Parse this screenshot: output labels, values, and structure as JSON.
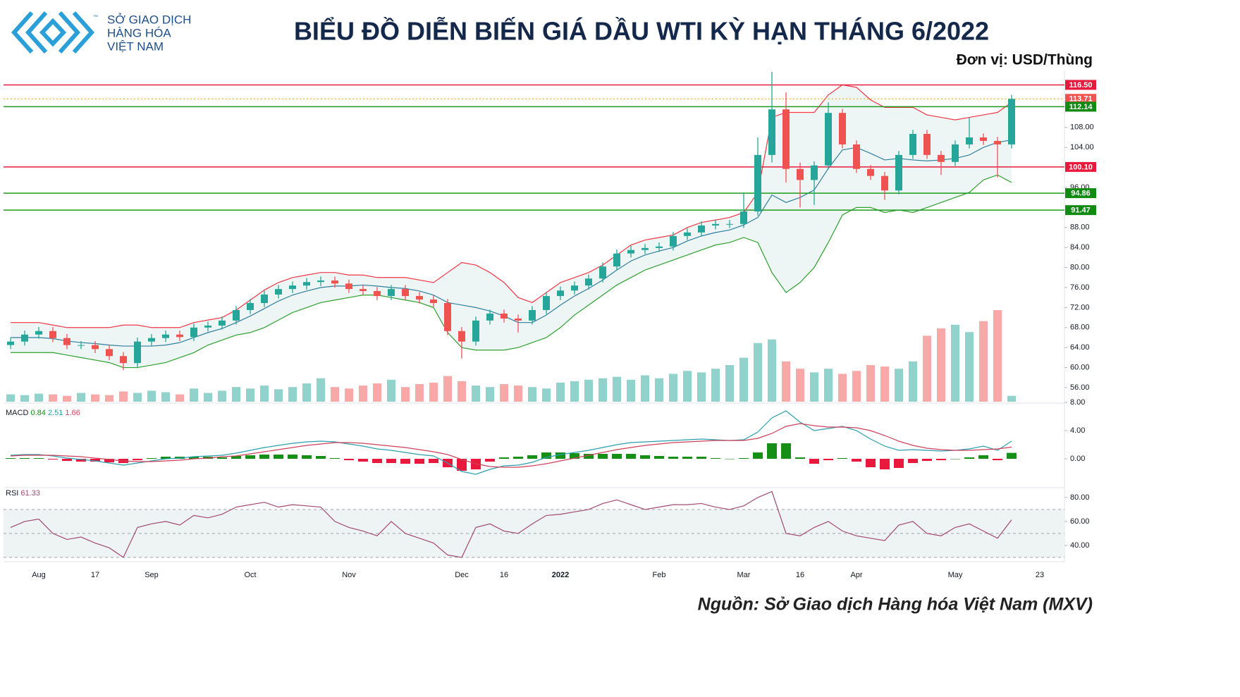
{
  "header": {
    "logo_lines": [
      "SỞ GIAO DỊCH",
      "HÀNG HÓA",
      "VIỆT NAM"
    ],
    "logo_mark": "™"
  },
  "chart_data": {
    "type": "candlestick",
    "title": "BIỂU ĐỒ DIỄN BIẾN GIÁ DẦU WTI KỲ HẠN THÁNG 6/2022",
    "unit": "Đơn vị: USD/Thùng",
    "source": "Nguồn: Sở Giao dịch Hàng hóa Việt Nam (MXV)",
    "categories": [
      null,
      null,
      "Aug",
      null,
      null,
      null,
      "17",
      null,
      null,
      null,
      "Sep",
      null,
      null,
      null,
      null,
      null,
      null,
      "Oct",
      null,
      null,
      null,
      null,
      null,
      null,
      "Nov",
      null,
      null,
      null,
      null,
      null,
      null,
      null,
      "Dec",
      null,
      null,
      "16",
      null,
      null,
      null,
      "2022",
      null,
      null,
      null,
      null,
      null,
      null,
      "Feb",
      null,
      null,
      null,
      null,
      null,
      "Mar",
      null,
      null,
      null,
      "16",
      null,
      null,
      null,
      "Apr",
      null,
      null,
      null,
      null,
      null,
      null,
      "May",
      null,
      null,
      null,
      null,
      null,
      "23"
    ],
    "open": [
      64.5,
      65.2,
      66.6,
      67.3,
      65.9,
      64.5,
      64.5,
      63.7,
      62.3,
      60.9,
      65.2,
      65.9,
      66.6,
      66.1,
      68.0,
      68.4,
      69.4,
      71.5,
      72.9,
      74.6,
      75.7,
      76.4,
      77.1,
      77.4,
      76.8,
      75.7,
      75.3,
      74.3,
      75.7,
      74.3,
      73.6,
      72.9,
      67.3,
      65.2,
      69.4,
      70.8,
      69.8,
      69.4,
      71.5,
      74.3,
      75.4,
      76.4,
      77.8,
      80.2,
      82.8,
      83.5,
      83.9,
      84.2,
      86.3,
      87.0,
      88.4,
      88.7,
      88.7,
      91.2,
      102.5,
      111.6,
      99.7,
      97.5,
      100.4,
      110.9,
      104.6,
      99.7,
      98.3,
      95.4,
      102.5,
      106.7,
      102.5,
      101.1,
      104.6,
      106.0,
      105.3,
      104.6,
      null,
      null
    ],
    "high": [
      66.0,
      67.4,
      68.1,
      68.1,
      66.7,
      65.3,
      65.3,
      64.5,
      63.1,
      66.0,
      66.7,
      67.4,
      67.4,
      68.8,
      69.2,
      70.2,
      72.3,
      73.7,
      75.4,
      76.5,
      77.2,
      77.9,
      78.2,
      78.2,
      77.6,
      76.5,
      76.1,
      76.5,
      76.5,
      75.1,
      74.4,
      73.7,
      68.1,
      70.2,
      71.6,
      71.6,
      70.6,
      72.3,
      75.1,
      76.2,
      77.2,
      78.6,
      81.0,
      83.6,
      84.3,
      84.7,
      85.0,
      87.1,
      87.8,
      89.2,
      89.5,
      89.5,
      95.0,
      106.0,
      119.1,
      115.0,
      101.0,
      101.2,
      113.0,
      111.7,
      105.4,
      100.5,
      99.1,
      103.3,
      107.5,
      107.5,
      103.3,
      105.4,
      110.0,
      106.8,
      106.1,
      114.5,
      null,
      null
    ],
    "low": [
      63.7,
      64.4,
      65.8,
      65.1,
      63.7,
      63.7,
      62.9,
      61.5,
      59.5,
      60.1,
      64.4,
      65.1,
      65.3,
      65.3,
      67.2,
      67.6,
      68.6,
      70.7,
      72.1,
      73.8,
      74.9,
      75.6,
      76.3,
      76.0,
      74.9,
      74.5,
      73.5,
      73.5,
      73.5,
      72.8,
      72.1,
      66.5,
      61.8,
      64.4,
      68.6,
      69.0,
      67.0,
      68.6,
      70.7,
      73.5,
      74.6,
      75.6,
      77.0,
      79.4,
      82.0,
      82.7,
      83.1,
      83.4,
      85.5,
      86.2,
      87.6,
      87.9,
      87.9,
      90.4,
      101.0,
      97.0,
      92.0,
      92.5,
      99.6,
      103.8,
      98.9,
      97.5,
      93.5,
      94.6,
      101.7,
      101.7,
      98.5,
      100.3,
      103.8,
      104.5,
      98.0,
      103.8,
      null,
      null
    ],
    "close": [
      65.2,
      66.6,
      67.3,
      65.9,
      64.5,
      64.5,
      63.7,
      62.3,
      60.9,
      65.2,
      65.9,
      66.6,
      66.1,
      68.0,
      68.4,
      69.4,
      71.5,
      72.9,
      74.6,
      75.7,
      76.4,
      77.1,
      77.4,
      76.8,
      75.7,
      75.3,
      74.3,
      75.7,
      74.3,
      73.6,
      72.9,
      67.3,
      65.2,
      69.4,
      70.8,
      69.8,
      69.4,
      71.5,
      74.3,
      75.4,
      76.4,
      77.8,
      80.2,
      82.8,
      83.5,
      83.9,
      84.2,
      86.3,
      87.0,
      88.4,
      88.7,
      88.7,
      91.2,
      102.5,
      111.6,
      99.7,
      97.5,
      100.4,
      110.9,
      104.6,
      99.7,
      98.3,
      95.4,
      102.5,
      106.7,
      102.5,
      101.1,
      104.6,
      106.0,
      105.3,
      104.6,
      113.71,
      null,
      null
    ],
    "up_color": "#26a69a",
    "down_color": "#ef5350",
    "volume": [
      10,
      9,
      11,
      10,
      8,
      12,
      10,
      9,
      14,
      12,
      15,
      13,
      10,
      18,
      12,
      15,
      20,
      18,
      22,
      17,
      20,
      25,
      32,
      20,
      18,
      22,
      25,
      30,
      20,
      24,
      26,
      35,
      28,
      22,
      20,
      24,
      22,
      20,
      18,
      26,
      28,
      30,
      32,
      34,
      30,
      36,
      32,
      38,
      42,
      40,
      45,
      50,
      60,
      80,
      85,
      55,
      45,
      40,
      45,
      38,
      42,
      50,
      48,
      45,
      55,
      90,
      100,
      105,
      95,
      110,
      125,
      8,
      null,
      null
    ],
    "bollinger": {
      "upper": [
        69,
        69,
        69,
        68.5,
        68,
        68,
        68,
        68,
        68.5,
        68.5,
        68,
        68,
        68,
        69,
        69.5,
        70,
        71.5,
        73.5,
        75.5,
        77,
        78,
        78.5,
        79,
        79,
        78.5,
        78.5,
        78,
        78,
        78,
        77.5,
        77,
        79,
        81,
        80.5,
        79,
        77,
        74,
        73,
        75,
        77,
        78,
        79,
        80.5,
        82.5,
        84.5,
        85.5,
        86,
        86.5,
        88,
        89,
        89.5,
        90,
        91,
        95,
        110,
        111,
        111,
        111,
        114.5,
        116.5,
        116,
        113.5,
        112,
        112,
        112,
        110.5,
        110,
        109.5,
        110,
        110.5,
        111,
        113,
        null,
        null
      ],
      "middle": [
        66,
        66,
        66,
        65.8,
        65.3,
        65,
        64.8,
        64.5,
        64.3,
        64.3,
        64.3,
        64.5,
        65,
        66,
        67,
        67.8,
        69,
        70.3,
        71.8,
        73.3,
        74.5,
        75.3,
        76,
        76.3,
        76.3,
        76.5,
        76.3,
        76,
        75.8,
        75.3,
        74.5,
        73,
        72.5,
        72,
        71.3,
        70.3,
        69,
        69,
        70.5,
        72.5,
        74.3,
        75.8,
        77.5,
        79.5,
        81.3,
        82.5,
        83.3,
        84,
        85.3,
        86.3,
        87,
        87.5,
        88.5,
        90,
        94.5,
        93,
        94,
        95.5,
        99.8,
        103.5,
        104,
        102.8,
        101.5,
        101.8,
        101.5,
        101.3,
        101.5,
        101.8,
        102.5,
        104,
        105,
        105.5,
        null,
        null
      ],
      "lower": [
        63,
        63,
        63,
        63,
        62.5,
        62,
        61.5,
        61,
        60,
        60,
        60.5,
        61,
        62,
        63,
        64.5,
        65.5,
        66.5,
        67,
        68,
        69.5,
        71,
        72,
        73,
        73.5,
        74,
        74.5,
        74.5,
        74,
        73.5,
        73,
        72,
        67,
        64,
        63.5,
        63.5,
        63.5,
        64,
        65,
        66,
        68,
        70.5,
        72.5,
        74.5,
        76.5,
        78,
        79.5,
        80.5,
        81.5,
        82.5,
        83.5,
        84.5,
        85,
        86,
        85,
        79,
        75,
        77,
        80,
        85,
        90.5,
        92,
        92,
        91,
        91.5,
        91,
        92,
        93,
        94,
        95,
        97.5,
        98.5,
        97,
        null,
        null
      ],
      "upper_color": "#f23645",
      "middle_color": "#2f7f9f",
      "lower_color": "#2ea02e",
      "fill": "#eef6f5"
    },
    "ylim": [
      53.18,
      119.38
    ],
    "yticks": [
      {
        "value": 56,
        "label": "56.00"
      },
      {
        "value": 60,
        "label": "60.00"
      },
      {
        "value": 64,
        "label": "64.00"
      },
      {
        "value": 68,
        "label": "68.00"
      },
      {
        "value": 72,
        "label": "72.00"
      },
      {
        "value": 76,
        "label": "76.00"
      },
      {
        "value": 80,
        "label": "80.00"
      },
      {
        "value": 84,
        "label": "84.00"
      },
      {
        "value": 88,
        "label": "88.00"
      },
      {
        "value": 96,
        "label": "96.00"
      },
      {
        "value": 104,
        "label": "104.00"
      },
      {
        "value": 108,
        "label": "108.00"
      }
    ],
    "grid": false,
    "levels": [
      {
        "value": 116.5,
        "label": "116.50",
        "line_color": "#e8193c",
        "tag_color": "#e8193c",
        "dash": false
      },
      {
        "value": 113.71,
        "label": "113.71",
        "line_color": "#f7a600",
        "tag_color": "#ef5350",
        "dash": true
      },
      {
        "value": 112.14,
        "label": "112.14",
        "line_color": "#1f9a1f",
        "tag_color": "#108a10",
        "dash": false
      },
      {
        "value": 100.1,
        "label": "100.10",
        "line_color": "#e8193c",
        "tag_color": "#e8193c",
        "dash": false
      },
      {
        "value": 94.86,
        "label": "94.86",
        "line_color": "#1f9a1f",
        "tag_color": "#108a10",
        "dash": false
      },
      {
        "value": 91.47,
        "label": "91.47",
        "line_color": "#1f9a1f",
        "tag_color": "#108a10",
        "dash": false
      }
    ],
    "macd": {
      "name": "MACD",
      "histogram": [
        0.1,
        0.1,
        0.1,
        -0.1,
        -0.3,
        -0.4,
        -0.4,
        -0.5,
        -0.6,
        -0.2,
        0.1,
        0.3,
        0.3,
        0.3,
        0.3,
        0.2,
        0.4,
        0.5,
        0.6,
        0.6,
        0.6,
        0.5,
        0.4,
        0.1,
        -0.2,
        -0.4,
        -0.6,
        -0.6,
        -0.7,
        -0.7,
        -0.6,
        -1.2,
        -1.7,
        -1.5,
        -0.4,
        0.2,
        0.3,
        0.5,
        0.9,
        0.9,
        0.8,
        0.7,
        0.7,
        0.7,
        0.7,
        0.5,
        0.4,
        0.3,
        0.3,
        0.3,
        0.1,
        0,
        0.1,
        0.9,
        2.2,
        2.2,
        0.2,
        -0.7,
        -0.2,
        0.1,
        -0.4,
        -1.2,
        -1.5,
        -1.3,
        -0.6,
        -0.3,
        -0.2,
        0,
        0.2,
        0.5,
        -0.2,
        0.84,
        null,
        null
      ],
      "macd": [
        0.5,
        0.6,
        0.6,
        0.4,
        0.1,
        -0.1,
        -0.3,
        -0.6,
        -0.9,
        -0.6,
        -0.3,
        0,
        0.1,
        0.3,
        0.4,
        0.5,
        0.8,
        1.2,
        1.6,
        1.9,
        2.2,
        2.4,
        2.5,
        2.4,
        2.1,
        1.8,
        1.4,
        1.2,
        0.9,
        0.6,
        0.4,
        -0.6,
        -1.8,
        -2.2,
        -1.5,
        -1.0,
        -0.9,
        -0.5,
        0.2,
        0.6,
        0.9,
        1.2,
        1.6,
        2.0,
        2.3,
        2.4,
        2.5,
        2.6,
        2.7,
        2.8,
        2.7,
        2.6,
        2.7,
        3.8,
        5.8,
        6.8,
        5.2,
        4.0,
        4.3,
        4.6,
        4.0,
        2.8,
        1.8,
        1.2,
        1.3,
        1.2,
        1.1,
        1.2,
        1.4,
        1.8,
        1.2,
        2.51,
        null,
        null
      ],
      "signal": [
        0.4,
        0.5,
        0.5,
        0.5,
        0.4,
        0.3,
        0.1,
        -0.1,
        -0.3,
        -0.4,
        -0.4,
        -0.3,
        -0.2,
        0,
        0.1,
        0.3,
        0.4,
        0.7,
        1.0,
        1.3,
        1.6,
        1.9,
        2.1,
        2.3,
        2.3,
        2.2,
        2.0,
        1.8,
        1.6,
        1.3,
        1.0,
        0.6,
        -0.1,
        -0.7,
        -1.1,
        -1.2,
        -1.2,
        -1.0,
        -0.7,
        -0.3,
        0.1,
        0.5,
        0.9,
        1.3,
        1.6,
        1.9,
        2.1,
        2.3,
        2.4,
        2.5,
        2.6,
        2.6,
        2.6,
        2.9,
        3.6,
        4.6,
        5.0,
        4.7,
        4.5,
        4.5,
        4.4,
        4.0,
        3.3,
        2.5,
        1.9,
        1.5,
        1.3,
        1.2,
        1.2,
        1.3,
        1.4,
        1.66,
        null,
        null
      ],
      "hist_up_color": "#158f15",
      "hist_down_color": "#e8193c",
      "macd_color": "#2a9fb0",
      "signal_color": "#d0405a",
      "ylim": [
        -3.9,
        7.8
      ],
      "yticks": [
        {
          "value": 0,
          "label": "0.00"
        },
        {
          "value": 4,
          "label": "4.00"
        },
        {
          "value": 8,
          "label": "8.00"
        }
      ]
    },
    "rsi": {
      "name": "RSI",
      "values": [
        55,
        60,
        62,
        50,
        45,
        47,
        42,
        38,
        30,
        55,
        58,
        60,
        57,
        65,
        63,
        66,
        72,
        74,
        76,
        72,
        74,
        73,
        72,
        60,
        55,
        52,
        48,
        60,
        50,
        46,
        42,
        32,
        30,
        55,
        58,
        52,
        50,
        58,
        65,
        66,
        68,
        70,
        75,
        78,
        74,
        70,
        72,
        74,
        74,
        75,
        72,
        70,
        73,
        80,
        85,
        50,
        48,
        55,
        60,
        52,
        48,
        46,
        44,
        57,
        60,
        50,
        48,
        55,
        58,
        52,
        46,
        61.33,
        null,
        null
      ],
      "color": "#a24a70",
      "band_fill": "#eef4f3",
      "levels": [
        70,
        50,
        30
      ],
      "ylim": [
        27.6,
        87.6
      ],
      "yticks": [
        {
          "value": 40,
          "label": "40.00"
        },
        {
          "value": 60,
          "label": "60.00"
        },
        {
          "value": 80,
          "label": "80.00"
        }
      ]
    }
  }
}
